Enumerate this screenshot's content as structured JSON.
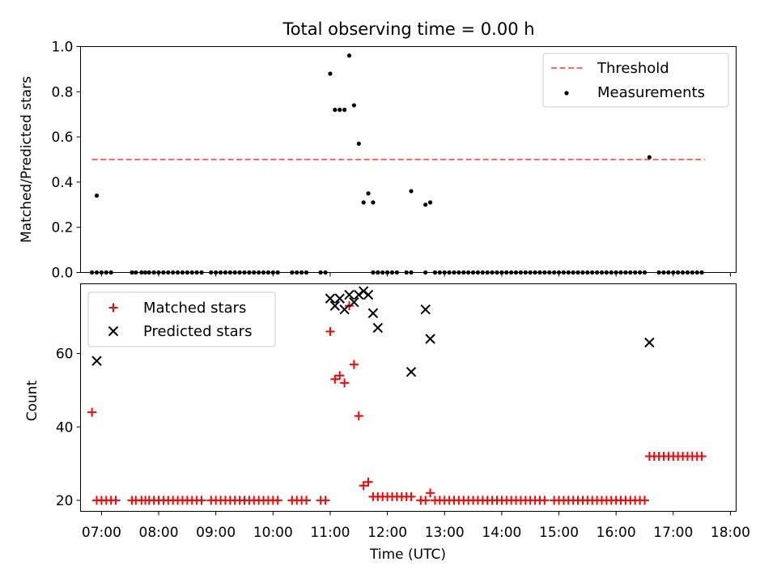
{
  "title": "Total observing time = 0.00 h",
  "colors": {
    "threshold": "#ff6b6b",
    "measurement": "#000000",
    "matched": "#ff0000",
    "predicted": "#000000"
  },
  "chart_data": [
    {
      "type": "scatter",
      "ylabel": "Matched/Predicted stars",
      "xlim": [
        "06:38",
        "18:06"
      ],
      "ylim": [
        0,
        1.0
      ],
      "yticks": [
        0.0,
        0.2,
        0.4,
        0.6,
        0.8,
        1.0
      ],
      "ytick_labels": [
        "0.0",
        "0.2",
        "0.4",
        "0.6",
        "0.8",
        "1.0"
      ],
      "grid": false,
      "legend": {
        "placement": "upper right",
        "entries": [
          "Threshold",
          "Measurements"
        ]
      },
      "threshold": {
        "name": "Threshold",
        "value": 0.5,
        "x_range": [
          "06:50",
          "17:33"
        ]
      },
      "series": [
        {
          "name": "Measurements",
          "x": [
            "06:50",
            "06:55",
            "07:00",
            "07:05",
            "07:10",
            "07:32",
            "07:36",
            "07:42",
            "07:46",
            "07:50",
            "07:55",
            "08:00",
            "08:05",
            "08:10",
            "08:15",
            "08:20",
            "08:25",
            "08:30",
            "08:35",
            "08:40",
            "08:45",
            "08:55",
            "09:00",
            "09:05",
            "09:10",
            "09:15",
            "09:20",
            "09:25",
            "09:30",
            "09:35",
            "09:40",
            "09:45",
            "09:50",
            "09:55",
            "10:00",
            "10:05",
            "10:20",
            "10:25",
            "10:30",
            "10:35",
            "10:50",
            "10:55",
            "11:45",
            "11:50",
            "11:55",
            "12:00",
            "12:05",
            "12:10",
            "12:20",
            "12:25",
            "12:40",
            "12:50",
            "12:55",
            "13:00",
            "13:05",
            "13:10",
            "13:15",
            "13:20",
            "13:25",
            "13:30",
            "13:35",
            "13:40",
            "13:45",
            "13:50",
            "13:55",
            "14:00",
            "14:05",
            "14:10",
            "14:15",
            "14:20",
            "14:25",
            "14:30",
            "14:35",
            "14:40",
            "14:45",
            "14:50",
            "14:55",
            "15:00",
            "15:05",
            "15:10",
            "15:15",
            "15:20",
            "15:25",
            "15:30",
            "15:35",
            "15:40",
            "15:45",
            "15:50",
            "15:55",
            "16:00",
            "16:05",
            "16:10",
            "16:15",
            "16:20",
            "16:25",
            "16:30",
            "16:45",
            "16:50",
            "16:55",
            "17:00",
            "17:05",
            "17:10",
            "17:15",
            "17:20",
            "17:25",
            "17:30",
            "06:55",
            "11:00",
            "11:05",
            "11:10",
            "11:15",
            "11:20",
            "11:25",
            "11:30",
            "11:35",
            "11:40",
            "11:45",
            "11:50",
            "12:25",
            "12:40",
            "12:45",
            "16:35"
          ],
          "y": [
            0,
            0,
            0,
            0,
            0,
            0,
            0,
            0,
            0,
            0,
            0,
            0,
            0,
            0,
            0,
            0,
            0,
            0,
            0,
            0,
            0,
            0,
            0,
            0,
            0,
            0,
            0,
            0,
            0,
            0,
            0,
            0,
            0,
            0,
            0,
            0,
            0,
            0,
            0,
            0,
            0,
            0,
            0,
            0,
            0,
            0,
            0,
            0,
            0,
            0,
            0,
            0,
            0,
            0,
            0,
            0,
            0,
            0,
            0,
            0,
            0,
            0,
            0,
            0,
            0,
            0,
            0,
            0,
            0,
            0,
            0,
            0,
            0,
            0,
            0,
            0,
            0,
            0,
            0,
            0,
            0,
            0,
            0,
            0,
            0,
            0,
            0,
            0,
            0,
            0,
            0,
            0,
            0,
            0,
            0,
            0,
            0,
            0,
            0,
            0,
            0,
            0,
            0,
            0,
            0,
            0,
            0.34,
            0.88,
            0.72,
            0.72,
            0.72,
            0.96,
            0.74,
            0.57,
            0.31,
            0.35,
            0.31,
            0,
            0.36,
            0.3,
            0.31,
            0.51
          ]
        }
      ]
    },
    {
      "type": "scatter",
      "xlabel": "Time (UTC)",
      "ylabel": "Count",
      "xlim": [
        "06:38",
        "18:06"
      ],
      "ylim": [
        17,
        79
      ],
      "yticks": [
        20,
        40,
        60
      ],
      "ytick_labels": [
        "20",
        "40",
        "60"
      ],
      "xticks": [
        "07:00",
        "08:00",
        "09:00",
        "10:00",
        "11:00",
        "12:00",
        "13:00",
        "14:00",
        "15:00",
        "16:00",
        "17:00",
        "18:00"
      ],
      "grid": false,
      "legend": {
        "placement": "upper left",
        "entries": [
          "Matched stars",
          "Predicted stars"
        ]
      },
      "series": [
        {
          "name": "Matched stars",
          "marker": "+",
          "x": [
            "06:50",
            "06:55",
            "07:00",
            "07:05",
            "07:10",
            "07:15",
            "07:32",
            "07:36",
            "07:42",
            "07:46",
            "07:50",
            "07:55",
            "08:00",
            "08:05",
            "08:10",
            "08:15",
            "08:20",
            "08:25",
            "08:30",
            "08:35",
            "08:40",
            "08:45",
            "08:55",
            "09:00",
            "09:05",
            "09:10",
            "09:15",
            "09:20",
            "09:25",
            "09:30",
            "09:35",
            "09:40",
            "09:45",
            "09:50",
            "09:55",
            "10:00",
            "10:05",
            "10:20",
            "10:25",
            "10:30",
            "10:35",
            "10:50",
            "10:55",
            "11:00",
            "11:05",
            "11:10",
            "11:15",
            "11:20",
            "11:25",
            "11:30",
            "11:35",
            "11:40",
            "11:45",
            "11:50",
            "11:55",
            "12:00",
            "12:05",
            "12:10",
            "12:15",
            "12:20",
            "12:25",
            "12:35",
            "12:40",
            "12:45",
            "12:50",
            "12:55",
            "13:00",
            "13:05",
            "13:10",
            "13:15",
            "13:20",
            "13:25",
            "13:30",
            "13:35",
            "13:40",
            "13:45",
            "13:50",
            "13:55",
            "14:00",
            "14:05",
            "14:10",
            "14:15",
            "14:20",
            "14:25",
            "14:30",
            "14:35",
            "14:40",
            "14:45",
            "14:55",
            "15:00",
            "15:05",
            "15:10",
            "15:15",
            "15:20",
            "15:25",
            "15:30",
            "15:35",
            "15:40",
            "15:45",
            "15:50",
            "15:55",
            "16:00",
            "16:05",
            "16:10",
            "16:15",
            "16:20",
            "16:25",
            "16:30",
            "16:35",
            "16:40",
            "16:45",
            "16:50",
            "16:55",
            "17:00",
            "17:05",
            "17:10",
            "17:15",
            "17:20",
            "17:25",
            "17:30"
          ],
          "y": [
            44,
            20,
            20,
            20,
            20,
            20,
            20,
            20,
            20,
            20,
            20,
            20,
            20,
            20,
            20,
            20,
            20,
            20,
            20,
            20,
            20,
            20,
            20,
            20,
            20,
            20,
            20,
            20,
            20,
            20,
            20,
            20,
            20,
            20,
            20,
            20,
            20,
            20,
            20,
            20,
            20,
            20,
            20,
            66,
            53,
            54,
            52,
            73,
            57,
            43,
            24,
            25,
            21,
            21,
            21,
            21,
            21,
            21,
            21,
            21,
            21,
            20,
            20,
            22,
            20,
            20,
            20,
            20,
            20,
            20,
            20,
            20,
            20,
            20,
            20,
            20,
            20,
            20,
            20,
            20,
            20,
            20,
            20,
            20,
            20,
            20,
            20,
            20,
            20,
            20,
            20,
            20,
            20,
            20,
            20,
            20,
            20,
            20,
            20,
            20,
            20,
            20,
            20,
            20,
            20,
            20,
            20,
            20,
            32,
            32,
            32,
            32,
            32,
            32,
            32,
            32,
            32,
            32,
            32,
            32
          ]
        },
        {
          "name": "Predicted stars",
          "marker": "x",
          "x": [
            "06:55",
            "11:00",
            "11:05",
            "11:10",
            "11:15",
            "11:20",
            "11:25",
            "11:30",
            "11:35",
            "11:40",
            "11:45",
            "11:50",
            "12:25",
            "12:40",
            "12:45",
            "16:35"
          ],
          "y": [
            58,
            75,
            73,
            75,
            72,
            76,
            74,
            76,
            77,
            76,
            71,
            67,
            55,
            72,
            64,
            63
          ]
        }
      ]
    }
  ]
}
